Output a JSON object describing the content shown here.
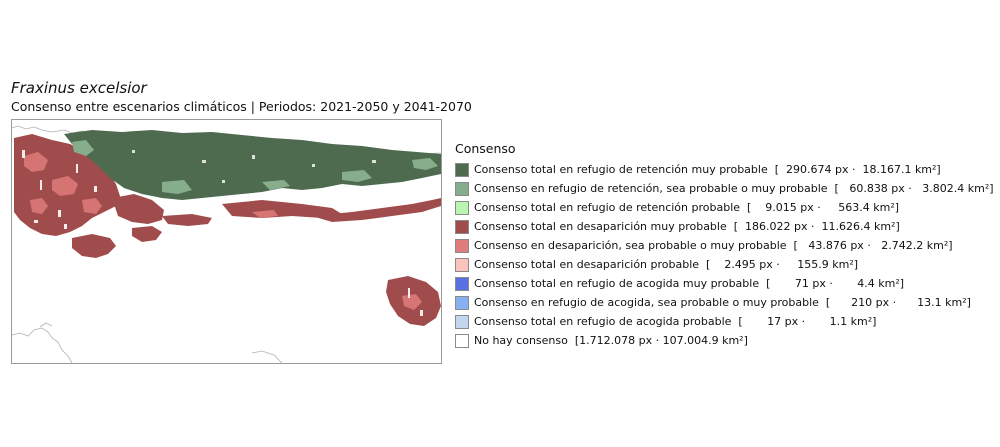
{
  "header": {
    "title": "Fraxinus excelsior",
    "subtitle": "Consenso entre escenarios climáticos | Periodos: 2021-2050 y 2041-2070"
  },
  "legend": {
    "title": "Consenso",
    "items": [
      {
        "label": "Consenso total en refugio de retención muy probable  [  290.674 px ·  18.167.1 km²]",
        "color": "#4f6b4f"
      },
      {
        "label": "Consenso en refugio de retención, sea probable o muy probable  [   60.838 px ·   3.802.4 km²]",
        "color": "#86ad8c"
      },
      {
        "label": "Consenso total en refugio de retención probable  [    9.015 px ·     563.4 km²]",
        "color": "#b9f5b0"
      },
      {
        "label": "Consenso total en desaparición muy probable  [  186.022 px ·  11.626.4 km²]",
        "color": "#a14c4c"
      },
      {
        "label": "Consenso en desaparición, sea probable o muy probable  [   43.876 px ·   2.742.2 km²]",
        "color": "#e07b7b"
      },
      {
        "label": "Consenso total en desaparición probable  [    2.495 px ·     155.9 km²]",
        "color": "#f8c4bb"
      },
      {
        "label": "Consenso total en refugio de acogida muy probable  [       71 px ·       4.4 km²]",
        "color": "#5a6fe0"
      },
      {
        "label": "Consenso en refugio de acogida, sea probable o muy probable  [      210 px ·      13.1 km²]",
        "color": "#86b0ef"
      },
      {
        "label": "Consenso total en refugio de acogida probable  [       17 px ·       1.1 km²]",
        "color": "#c2d6f0"
      },
      {
        "label": "No hay consenso  [1.712.078 px · 107.004.9 km²]",
        "color": "#ffffff"
      }
    ]
  },
  "map": {
    "colors": {
      "retention_very_probable": "#4f6b4f",
      "retention_probable_mix": "#86ad8c",
      "disappearance_very_probable": "#a14c4c",
      "disappearance_mix": "#e07b7b",
      "coastline": "#b0b0b0"
    }
  }
}
